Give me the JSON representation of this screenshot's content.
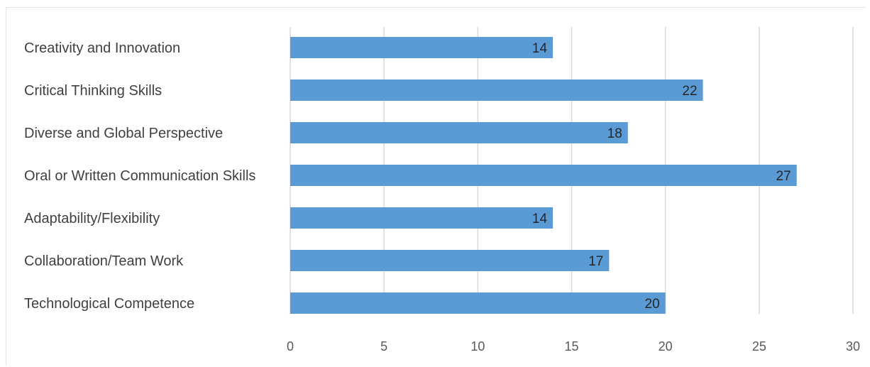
{
  "chart_data": {
    "type": "bar",
    "orientation": "horizontal",
    "categories": [
      "Creativity and Innovation",
      "Critical Thinking Skills",
      "Diverse and Global Perspective",
      "Oral or Written Communication Skills",
      "Adaptability/Flexibility",
      "Collaboration/Team Work",
      "Technological Competence"
    ],
    "values": [
      14,
      22,
      18,
      27,
      14,
      17,
      20
    ],
    "xlim": [
      0,
      30
    ],
    "xticks": [
      "0",
      "5",
      "10",
      "15",
      "20",
      "25",
      "30"
    ],
    "grid": "vertical",
    "data_labels": true,
    "bar_color": "#5b9bd5",
    "title": "",
    "xlabel": "",
    "ylabel": ""
  }
}
